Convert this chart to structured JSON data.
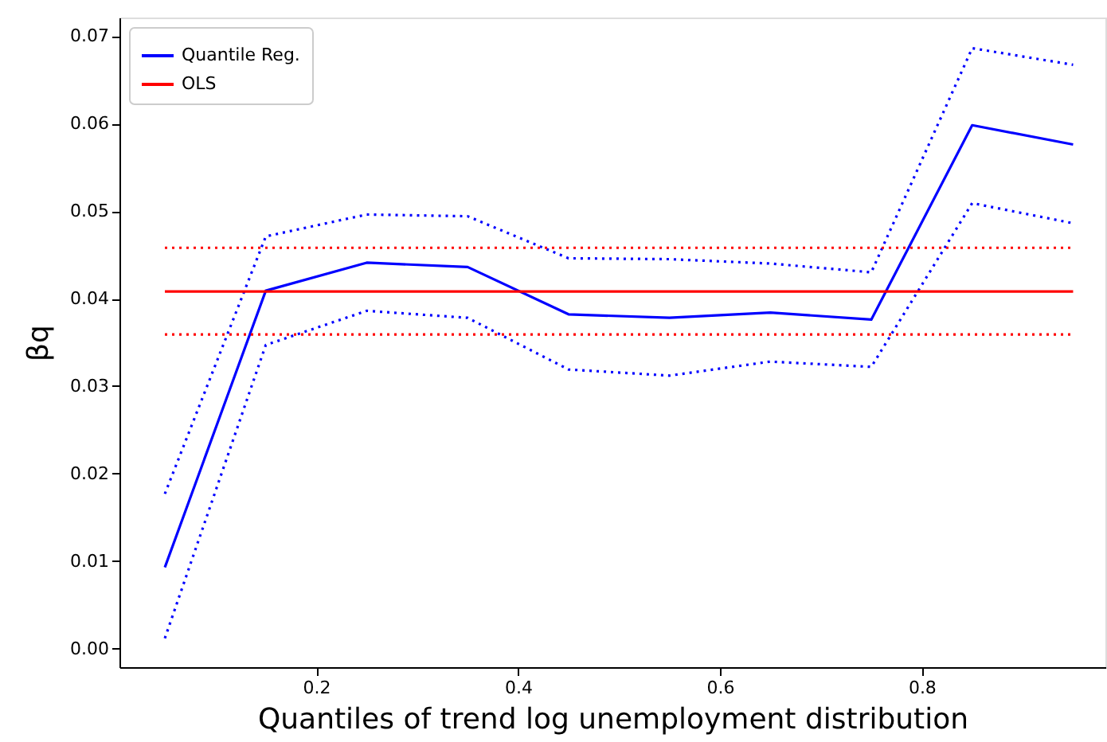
{
  "chart_data": {
    "type": "line",
    "xlabel": "Quantiles of trend log unemployment distribution",
    "ylabel": "βq",
    "x": [
      0.05,
      0.15,
      0.25,
      0.35,
      0.45,
      0.55,
      0.65,
      0.75,
      0.85,
      0.95
    ],
    "xlim": [
      0.005,
      0.982
    ],
    "xticks": [
      0.2,
      0.4,
      0.6,
      0.8
    ],
    "ylim": [
      -0.0021,
      0.0721
    ],
    "yticks": [
      {
        "value": 0,
        "label": "0.00"
      },
      {
        "value": 0.01,
        "label": "0.01"
      },
      {
        "value": 0.02,
        "label": "0.02"
      },
      {
        "value": 0.03,
        "label": "0.03"
      },
      {
        "value": 0.04,
        "label": "0.04"
      },
      {
        "value": 0.05,
        "label": "0.05"
      },
      {
        "value": 0.06,
        "label": "0.06"
      },
      {
        "value": 0.07,
        "label": "0.07"
      }
    ],
    "grid": false,
    "legend": "top left",
    "marker": "none",
    "series": [
      {
        "name": "Quantile Reg.",
        "color": "#0000ff",
        "line_style": "solid",
        "values": [
          0.0093,
          0.0409,
          0.0441,
          0.0436,
          0.0382,
          0.0378,
          0.0384,
          0.0376,
          0.0598,
          0.0576
        ]
      },
      {
        "color": "#0000ff",
        "line_style": "dotted",
        "values": [
          0.0177,
          0.0471,
          0.0496,
          0.0494,
          0.0446,
          0.0445,
          0.044,
          0.043,
          0.0686,
          0.0667
        ]
      },
      {
        "color": "#0000ff",
        "line_style": "dotted",
        "values": [
          0.0012,
          0.0347,
          0.0386,
          0.0378,
          0.0319,
          0.0312,
          0.0328,
          0.0322,
          0.0509,
          0.0486
        ]
      },
      {
        "name": "OLS",
        "color": "#ff0000",
        "line_style": "solid",
        "values": [
          0.0408,
          0.0408,
          0.0408,
          0.0408,
          0.0408,
          0.0408,
          0.0408,
          0.0408,
          0.0408,
          0.0408
        ]
      },
      {
        "color": "#ff0000",
        "line_style": "dotted",
        "values": [
          0.0458,
          0.0458,
          0.0458,
          0.0458,
          0.0458,
          0.0458,
          0.0458,
          0.0458,
          0.0458,
          0.0458
        ]
      },
      {
        "color": "#ff0000",
        "line_style": "dotted",
        "values": [
          0.0359,
          0.0359,
          0.0359,
          0.0359,
          0.0359,
          0.0359,
          0.0359,
          0.0359,
          0.0359,
          0.0359
        ]
      }
    ]
  }
}
